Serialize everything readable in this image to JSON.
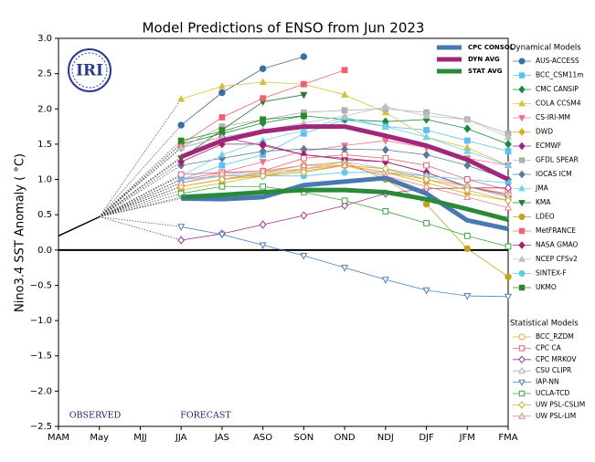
{
  "chart_data": {
    "type": "line",
    "title": "Model Predictions of ENSO from Jun 2023",
    "y_label": "Nino3.4 SST Anomaly ( °C)",
    "logo_text": "IRI",
    "annotations": [
      "OBSERVED",
      "FORECAST"
    ],
    "categories": [
      "MAM",
      "May",
      "MJJ",
      "JJA",
      "JAS",
      "ASO",
      "SON",
      "OND",
      "NDJ",
      "DJF",
      "JFM",
      "FMA"
    ],
    "ylim": [
      -2.5,
      3.0
    ],
    "yticks": [
      {
        "value": -2.5,
        "label": "−2.5"
      },
      {
        "value": -2.0,
        "label": "−2.0"
      },
      {
        "value": -1.5,
        "label": "−1.5"
      },
      {
        "value": -1.0,
        "label": "−1.0"
      },
      {
        "value": -0.5,
        "label": "−0.5"
      },
      {
        "value": 0,
        "label": "0.0"
      },
      {
        "value": 0.5,
        "label": "0.5"
      },
      {
        "value": 1.0,
        "label": "1.0"
      },
      {
        "value": 1.5,
        "label": "1.5"
      },
      {
        "value": 2.0,
        "label": "2.0"
      },
      {
        "value": 2.5,
        "label": "2.5"
      },
      {
        "value": 3.0,
        "label": "3.0"
      }
    ],
    "zero_line": true,
    "legend_titles": [
      "Dynamical Models",
      "Statistical Models"
    ],
    "observed": {
      "color": "#000000",
      "values": [
        0.2,
        0.47,
        null,
        null,
        null,
        null,
        null,
        null,
        null,
        null,
        null,
        null
      ]
    },
    "series": [
      {
        "name": "AUS-ACCESS",
        "group": 0,
        "color": "#3a6ea5",
        "marker": "circle",
        "filled": true,
        "values": [
          null,
          null,
          null,
          1.77,
          2.23,
          2.57,
          2.74,
          null,
          null,
          null,
          null,
          null
        ]
      },
      {
        "name": "BCC_CSM11m",
        "group": 0,
        "color": "#5bc0eb",
        "marker": "square",
        "filled": true,
        "values": [
          null,
          null,
          null,
          1.0,
          1.2,
          1.35,
          1.65,
          1.85,
          1.75,
          1.7,
          1.55,
          1.4
        ]
      },
      {
        "name": "CMC CANSIP",
        "group": 0,
        "color": "#1a8a3a",
        "marker": "diamond",
        "filled": true,
        "values": [
          null,
          null,
          null,
          1.5,
          1.65,
          1.8,
          1.9,
          1.85,
          1.82,
          1.85,
          1.72,
          1.5
        ]
      },
      {
        "name": "COLA CCSM4",
        "group": 0,
        "color": "#d4c040",
        "marker": "triangle",
        "filled": true,
        "values": [
          null,
          null,
          null,
          2.14,
          2.32,
          2.38,
          2.35,
          2.2,
          1.95,
          1.6,
          1.45,
          1.2
        ]
      },
      {
        "name": "CS-IRI-MM",
        "group": 0,
        "color": "#f07090",
        "marker": "triangle-down",
        "filled": true,
        "values": [
          null,
          null,
          null,
          1.0,
          1.1,
          1.25,
          1.4,
          1.48,
          1.55,
          1.45,
          1.3,
          1.2
        ]
      },
      {
        "name": "DWD",
        "group": 0,
        "color": "#d4b020",
        "marker": "diamond",
        "filled": true,
        "values": [
          null,
          null,
          null,
          0.85,
          0.95,
          1.05,
          1.15,
          1.2,
          1.1,
          0.95,
          0.8,
          0.7
        ]
      },
      {
        "name": "ECMWF",
        "group": 0,
        "color": "#a0208a",
        "marker": "diamond",
        "filled": true,
        "values": [
          null,
          null,
          null,
          1.45,
          1.6,
          1.48,
          1.35,
          1.3,
          1.25,
          1.1,
          0.9,
          0.75
        ]
      },
      {
        "name": "GFDL SPEAR",
        "group": 0,
        "color": "#b0b0b0",
        "marker": "square",
        "filled": true,
        "values": [
          null,
          null,
          null,
          1.45,
          1.75,
          1.85,
          1.95,
          1.98,
          2.0,
          1.95,
          1.85,
          1.65
        ]
      },
      {
        "name": "IOCAS ICM",
        "group": 0,
        "color": "#5a7a9a",
        "marker": "diamond",
        "filled": true,
        "values": [
          null,
          null,
          null,
          1.2,
          1.3,
          1.4,
          1.43,
          1.43,
          1.42,
          1.35,
          1.2,
          1.0
        ]
      },
      {
        "name": "JMA",
        "group": 0,
        "color": "#70d0f0",
        "marker": "triangle",
        "filled": true,
        "values": [
          null,
          null,
          null,
          1.05,
          1.35,
          1.55,
          1.7,
          1.88,
          1.75,
          1.6,
          1.4,
          1.2
        ]
      },
      {
        "name": "KMA",
        "group": 0,
        "color": "#2a7a2a",
        "marker": "triangle-down",
        "filled": true,
        "values": [
          null,
          null,
          null,
          1.3,
          1.7,
          2.1,
          2.2,
          null,
          null,
          null,
          null,
          null
        ]
      },
      {
        "name": "LDEO",
        "group": 0,
        "color": "#c8a020",
        "marker": "circle",
        "filled": true,
        "values": [
          null,
          null,
          null,
          0.9,
          1.0,
          1.1,
          1.2,
          1.25,
          1.0,
          0.65,
          0.02,
          -0.38
        ]
      },
      {
        "name": "MetFRANCE",
        "group": 0,
        "color": "#f06070",
        "marker": "square",
        "filled": true,
        "values": [
          null,
          null,
          null,
          1.5,
          1.88,
          2.15,
          2.35,
          2.55,
          null,
          null,
          null,
          null
        ]
      },
      {
        "name": "NASA GMAO",
        "group": 0,
        "color": "#a02070",
        "marker": "diamond",
        "filled": true,
        "values": [
          null,
          null,
          null,
          1.25,
          1.5,
          1.5,
          1.35,
          1.28,
          1.25,
          1.1,
          0.9,
          0.78
        ]
      },
      {
        "name": "NCEP CFSv2",
        "group": 0,
        "color": "#c0c0c0",
        "marker": "triangle",
        "filled": true,
        "values": [
          null,
          null,
          null,
          1.45,
          1.6,
          1.7,
          1.8,
          1.9,
          2.03,
          1.9,
          1.85,
          1.6
        ]
      },
      {
        "name": "SINTEX-F",
        "group": 0,
        "color": "#60c8e8",
        "marker": "circle",
        "filled": true,
        "values": [
          null,
          null,
          null,
          1.0,
          1.05,
          1.05,
          1.05,
          1.1,
          1.1,
          1.05,
          1.0,
          0.95
        ]
      },
      {
        "name": "UKMO",
        "group": 0,
        "color": "#2a8a2a",
        "marker": "square",
        "filled": true,
        "values": [
          null,
          null,
          null,
          1.55,
          1.68,
          1.85,
          1.9,
          null,
          null,
          null,
          null,
          null
        ]
      },
      {
        "name": "BCC_RZDM",
        "group": 1,
        "color": "#f0a040",
        "marker": "circle",
        "filled": false,
        "values": [
          null,
          null,
          null,
          0.9,
          1.0,
          1.08,
          1.12,
          1.2,
          1.1,
          1.0,
          0.9,
          0.8
        ]
      },
      {
        "name": "CPC CA",
        "group": 1,
        "color": "#e06070",
        "marker": "square",
        "filled": false,
        "values": [
          null,
          null,
          null,
          1.07,
          1.1,
          1.12,
          1.3,
          1.35,
          1.3,
          1.2,
          1.0,
          0.85
        ]
      },
      {
        "name": "CPC MRKOV",
        "group": 1,
        "color": "#a03090",
        "marker": "diamond",
        "filled": false,
        "values": [
          null,
          null,
          null,
          0.14,
          0.23,
          0.36,
          0.49,
          0.63,
          0.8,
          0.87,
          0.88,
          0.88
        ]
      },
      {
        "name": "CSU CLIPR",
        "group": 1,
        "color": "#b0b0b0",
        "marker": "triangle",
        "filled": false,
        "values": [
          null,
          null,
          null,
          0.95,
          1.05,
          1.1,
          1.15,
          1.25,
          1.15,
          1.05,
          0.9,
          0.75
        ]
      },
      {
        "name": "IAP-NN",
        "group": 1,
        "color": "#4a80c0",
        "marker": "triangle-down",
        "filled": false,
        "values": [
          null,
          null,
          null,
          0.33,
          0.22,
          0.07,
          -0.08,
          -0.25,
          -0.42,
          -0.57,
          -0.65,
          -0.66
        ]
      },
      {
        "name": "UCLA-TCD",
        "group": 1,
        "color": "#40a040",
        "marker": "square",
        "filled": false,
        "values": [
          null,
          null,
          null,
          0.8,
          0.9,
          0.9,
          0.82,
          0.7,
          0.55,
          0.38,
          0.2,
          0.05
        ]
      },
      {
        "name": "UW PSL-CSLIM",
        "group": 1,
        "color": "#d0b030",
        "marker": "diamond",
        "filled": false,
        "values": [
          null,
          null,
          null,
          0.9,
          1.0,
          1.05,
          1.1,
          1.2,
          1.15,
          1.0,
          0.85,
          0.7
        ]
      },
      {
        "name": "UW PSL-LIM",
        "group": 1,
        "color": "#f08080",
        "marker": "triangle",
        "filled": false,
        "values": [
          null,
          null,
          null,
          0.95,
          1.08,
          1.12,
          1.2,
          1.2,
          1.05,
          0.9,
          0.75,
          0.6
        ]
      },
      {
        "name": "CPC CONSOL",
        "color": "#4a78b0",
        "linewidth": 5,
        "values": [
          null,
          null,
          null,
          0.73,
          0.72,
          0.75,
          0.92,
          0.97,
          1.02,
          0.8,
          0.42,
          0.3
        ]
      },
      {
        "name": "DYN AVG",
        "color": "#a02878",
        "linewidth": 5,
        "values": [
          null,
          null,
          null,
          1.32,
          1.55,
          1.68,
          1.75,
          1.75,
          1.62,
          1.48,
          1.28,
          1.0
        ]
      },
      {
        "name": "STAT AVG",
        "color": "#2a8a3a",
        "linewidth": 5,
        "values": [
          null,
          null,
          null,
          0.75,
          0.78,
          0.82,
          0.85,
          0.85,
          0.82,
          0.72,
          0.58,
          0.43
        ]
      }
    ]
  }
}
